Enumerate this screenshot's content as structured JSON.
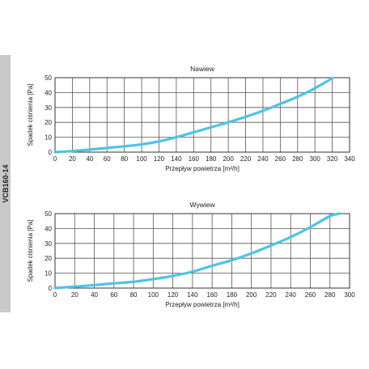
{
  "side_label": "VCB160-14",
  "chart_data": [
    {
      "type": "line",
      "title": "Nawiew",
      "xlabel": "Przepływ powietrza [m³/h]",
      "ylabel": "Spadek ciśnienia [Pa]",
      "xlim": [
        0,
        340
      ],
      "ylim": [
        0,
        50
      ],
      "xticks": [
        0,
        20,
        40,
        60,
        80,
        100,
        120,
        140,
        160,
        180,
        200,
        220,
        240,
        260,
        280,
        300,
        320,
        340
      ],
      "yticks": [
        0,
        10,
        20,
        30,
        40,
        50
      ],
      "grid": true,
      "line_color": "#4dc3e6",
      "series": [
        {
          "x": [
            0,
            20,
            40,
            60,
            80,
            100,
            120,
            140,
            160,
            180,
            200,
            220,
            240,
            260,
            280,
            300,
            320
          ],
          "y": [
            0,
            0.7,
            1.7,
            2.8,
            3.9,
            5.2,
            7.2,
            10,
            13.3,
            16.7,
            20,
            23.7,
            27.8,
            32.4,
            37.2,
            42.9,
            49.6
          ]
        }
      ]
    },
    {
      "type": "line",
      "title": "Wywiew",
      "xlabel": "Przepływ powietrza [m³/h]",
      "ylabel": "Spadek ciśnienia [Pa]",
      "xlim": [
        0,
        300
      ],
      "ylim": [
        0,
        50
      ],
      "xticks": [
        0,
        20,
        40,
        60,
        80,
        100,
        120,
        140,
        160,
        180,
        200,
        220,
        240,
        260,
        280,
        300
      ],
      "yticks": [
        0,
        10,
        20,
        30,
        40,
        50
      ],
      "grid": true,
      "line_color": "#4dc3e6",
      "series": [
        {
          "x": [
            0,
            20,
            40,
            60,
            80,
            100,
            120,
            140,
            160,
            180,
            200,
            220,
            240,
            260,
            280,
            290
          ],
          "y": [
            0,
            1,
            2,
            3.2,
            4.2,
            6,
            8.2,
            11,
            15,
            18.7,
            23.3,
            28.6,
            34.3,
            40.9,
            48.3,
            50
          ]
        }
      ]
    }
  ]
}
